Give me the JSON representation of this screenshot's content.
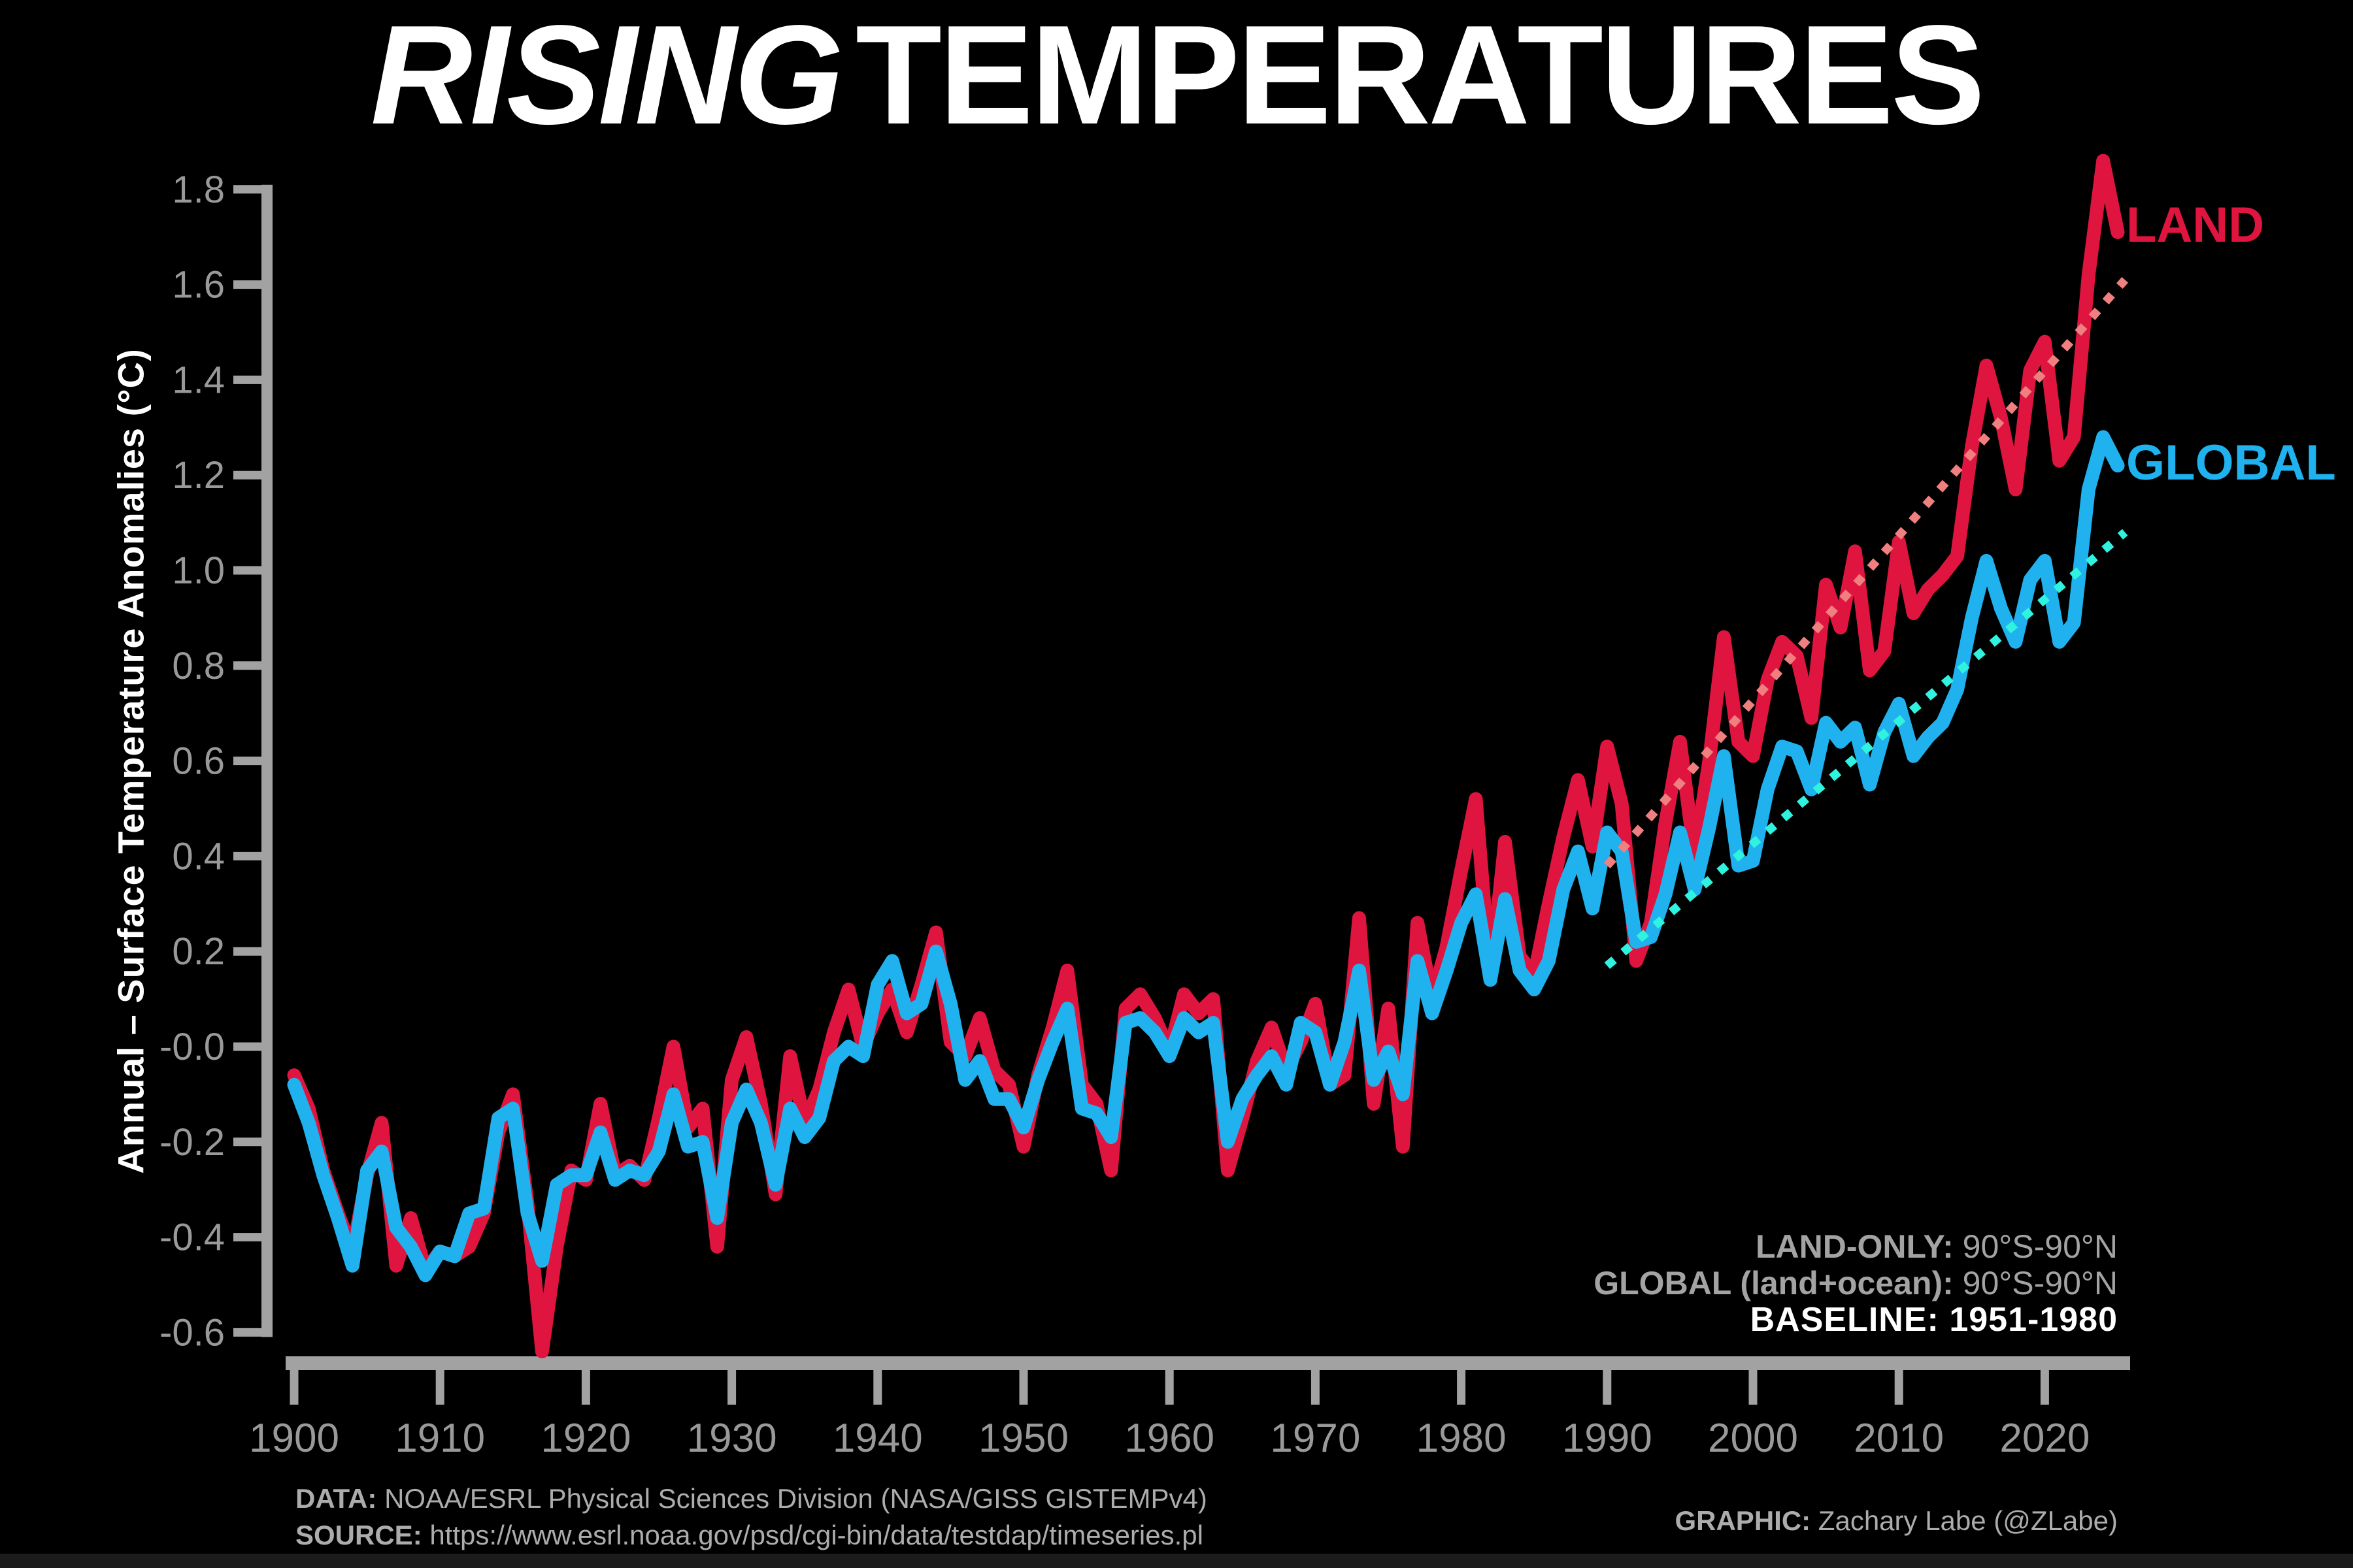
{
  "title": {
    "italic": "RISING",
    "rest": "TEMPERATURES"
  },
  "y_axis_label": "Annual – Surface Temperature Anomalies (°C)",
  "series_labels": {
    "land": "LAND",
    "global": "GLOBAL"
  },
  "annotations": {
    "land_scope_label": "LAND-ONLY:",
    "land_scope_value": " 90°S-90°N",
    "global_scope_label": "GLOBAL (land+ocean):",
    "global_scope_value": " 90°S-90°N",
    "baseline_label": "BASELINE:",
    "baseline_value": " 1951-1980"
  },
  "footer": {
    "data_label": "DATA:",
    "data_value": " NOAA/ESRL Physical Sciences Division (NASA/GISS GISTEMPv4)",
    "source_label": "SOURCE:",
    "source_value": " https://www.esrl.noaa.gov/psd/cgi-bin/data/testdap/timeseries.pl",
    "graphic_label": "GRAPHIC:",
    "graphic_value": " Zachary Labe (@ZLabe)"
  },
  "colors": {
    "background": "#000000",
    "title_text": "#ffffff",
    "land_line": "#DF1540",
    "global_line": "#20B2EE",
    "land_trend": "#F08080",
    "global_trend": "#2FF3DF",
    "axis": "#A2A2A2",
    "tick_labels": "#999999",
    "annotation_gray": "#A3A3A3",
    "footer_gray": "#ACACAC"
  },
  "chart_data": {
    "type": "line",
    "title": "RISING TEMPERATURES",
    "xlabel": "",
    "ylabel": "Annual – Surface Temperature Anomalies (°C)",
    "grid": false,
    "x_start": 1900,
    "x_end": 2025,
    "xlim": [
      1899.4,
      2025.9
    ],
    "ylim": [
      -0.65,
      1.9
    ],
    "x_ticks": [
      1900,
      1910,
      1920,
      1930,
      1940,
      1950,
      1960,
      1970,
      1980,
      1990,
      2000,
      2010,
      2020
    ],
    "y_ticks": [
      "1.8",
      "1.6",
      "1.4",
      "1.2",
      "1.0",
      "0.8",
      "0.6",
      "0.4",
      "0.2",
      "-0.0",
      "-0.2",
      "-0.4",
      "-0.6"
    ],
    "axis_color": "#A2A2A2",
    "tick_label_color": "#999999",
    "legend_position": "labels-at-line-ends-right",
    "series": [
      {
        "name": "LAND",
        "color": "#DF1540",
        "values": [
          -0.06,
          -0.13,
          -0.26,
          -0.35,
          -0.43,
          -0.27,
          -0.16,
          -0.46,
          -0.36,
          -0.47,
          -0.43,
          -0.44,
          -0.42,
          -0.35,
          -0.18,
          -0.1,
          -0.33,
          -0.64,
          -0.42,
          -0.26,
          -0.28,
          -0.12,
          -0.27,
          -0.25,
          -0.28,
          -0.15,
          0.0,
          -0.17,
          -0.13,
          -0.42,
          -0.07,
          0.02,
          -0.12,
          -0.31,
          -0.02,
          -0.16,
          -0.09,
          0.03,
          0.12,
          0.0,
          0.07,
          0.12,
          0.03,
          0.13,
          0.24,
          0.01,
          -0.02,
          0.06,
          -0.05,
          -0.08,
          -0.21,
          -0.06,
          0.04,
          0.16,
          -0.08,
          -0.12,
          -0.26,
          0.08,
          0.11,
          0.06,
          -0.01,
          0.11,
          0.07,
          0.1,
          -0.26,
          -0.15,
          -0.03,
          0.04,
          -0.05,
          0.01,
          0.09,
          -0.08,
          -0.06,
          0.27,
          -0.12,
          0.08,
          -0.21,
          0.26,
          0.1,
          0.21,
          0.37,
          0.52,
          0.14,
          0.43,
          0.19,
          0.15,
          0.3,
          0.44,
          0.56,
          0.42,
          0.63,
          0.51,
          0.18,
          0.26,
          0.47,
          0.64,
          0.4,
          0.6,
          0.86,
          0.64,
          0.61,
          0.77,
          0.85,
          0.82,
          0.69,
          0.97,
          0.88,
          1.04,
          0.79,
          0.83,
          1.06,
          0.91,
          0.96,
          0.99,
          1.03,
          1.26,
          1.43,
          1.32,
          1.17,
          1.42,
          1.48,
          1.23,
          1.28,
          1.62,
          1.86,
          1.71
        ]
      },
      {
        "name": "GLOBAL",
        "color": "#20B2EE",
        "values": [
          -0.08,
          -0.16,
          -0.27,
          -0.36,
          -0.46,
          -0.26,
          -0.22,
          -0.38,
          -0.42,
          -0.48,
          -0.43,
          -0.44,
          -0.35,
          -0.34,
          -0.15,
          -0.13,
          -0.35,
          -0.45,
          -0.29,
          -0.27,
          -0.27,
          -0.18,
          -0.28,
          -0.26,
          -0.27,
          -0.22,
          -0.1,
          -0.21,
          -0.2,
          -0.36,
          -0.16,
          -0.09,
          -0.16,
          -0.29,
          -0.13,
          -0.19,
          -0.15,
          -0.03,
          0.0,
          -0.02,
          0.13,
          0.18,
          0.07,
          0.09,
          0.2,
          0.09,
          -0.07,
          -0.03,
          -0.11,
          -0.11,
          -0.17,
          -0.07,
          0.01,
          0.08,
          -0.13,
          -0.14,
          -0.19,
          0.05,
          0.06,
          0.03,
          -0.02,
          0.06,
          0.03,
          0.05,
          -0.2,
          -0.11,
          -0.06,
          -0.02,
          -0.08,
          0.05,
          0.03,
          -0.08,
          0.01,
          0.16,
          -0.07,
          -0.01,
          -0.1,
          0.18,
          0.07,
          0.16,
          0.26,
          0.32,
          0.14,
          0.31,
          0.16,
          0.12,
          0.18,
          0.33,
          0.41,
          0.29,
          0.45,
          0.41,
          0.22,
          0.23,
          0.32,
          0.45,
          0.33,
          0.46,
          0.61,
          0.38,
          0.39,
          0.54,
          0.63,
          0.62,
          0.54,
          0.68,
          0.64,
          0.67,
          0.55,
          0.66,
          0.72,
          0.61,
          0.65,
          0.68,
          0.75,
          0.9,
          1.02,
          0.92,
          0.85,
          0.98,
          1.02,
          0.85,
          0.89,
          1.17,
          1.28,
          1.22
        ]
      }
    ],
    "trend_lines": [
      {
        "series": "LAND",
        "style": "dotted",
        "color": "#F08080",
        "x1": 1990,
        "y1": 0.38,
        "x2": 2025.5,
        "y2": 1.61
      },
      {
        "series": "GLOBAL",
        "style": "dotted",
        "color": "#2FF3DF",
        "x1": 1990,
        "y1": 0.17,
        "x2": 2025.5,
        "y2": 1.08
      }
    ]
  }
}
